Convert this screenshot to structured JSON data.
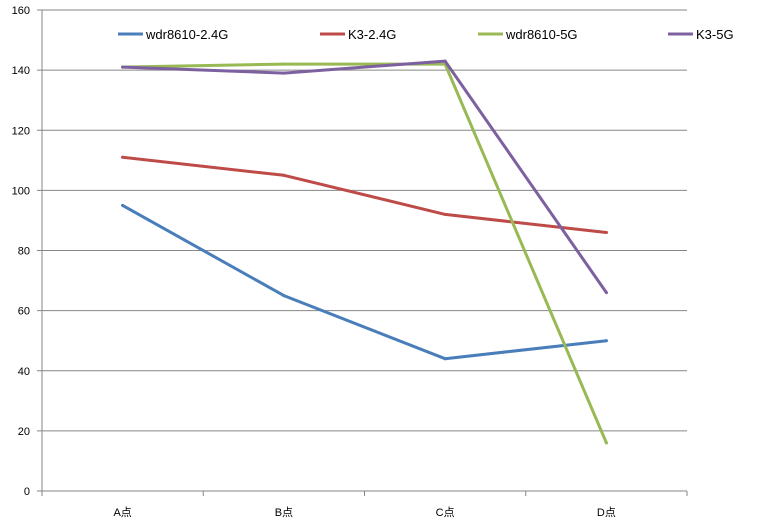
{
  "chart_data": {
    "type": "line",
    "categories": [
      "A点",
      "B点",
      "C点",
      "D点"
    ],
    "series": [
      {
        "name": "wdr8610-2.4G",
        "color": "#4a7ebb",
        "values": [
          95,
          65,
          44,
          50
        ]
      },
      {
        "name": "K3-2.4G",
        "color": "#be4b48",
        "values": [
          111,
          105,
          92,
          86
        ]
      },
      {
        "name": "wdr8610-5G",
        "color": "#98b954",
        "values": [
          141,
          142,
          142,
          16
        ]
      },
      {
        "name": "K3-5G",
        "color": "#7d60a0",
        "values": [
          141,
          139,
          143,
          66
        ]
      }
    ],
    "yticks": [
      "0",
      "20",
      "40",
      "60",
      "80",
      "100",
      "120",
      "140",
      "160"
    ],
    "ylim": [
      0,
      160
    ],
    "grid": true,
    "legend_position": "top"
  }
}
